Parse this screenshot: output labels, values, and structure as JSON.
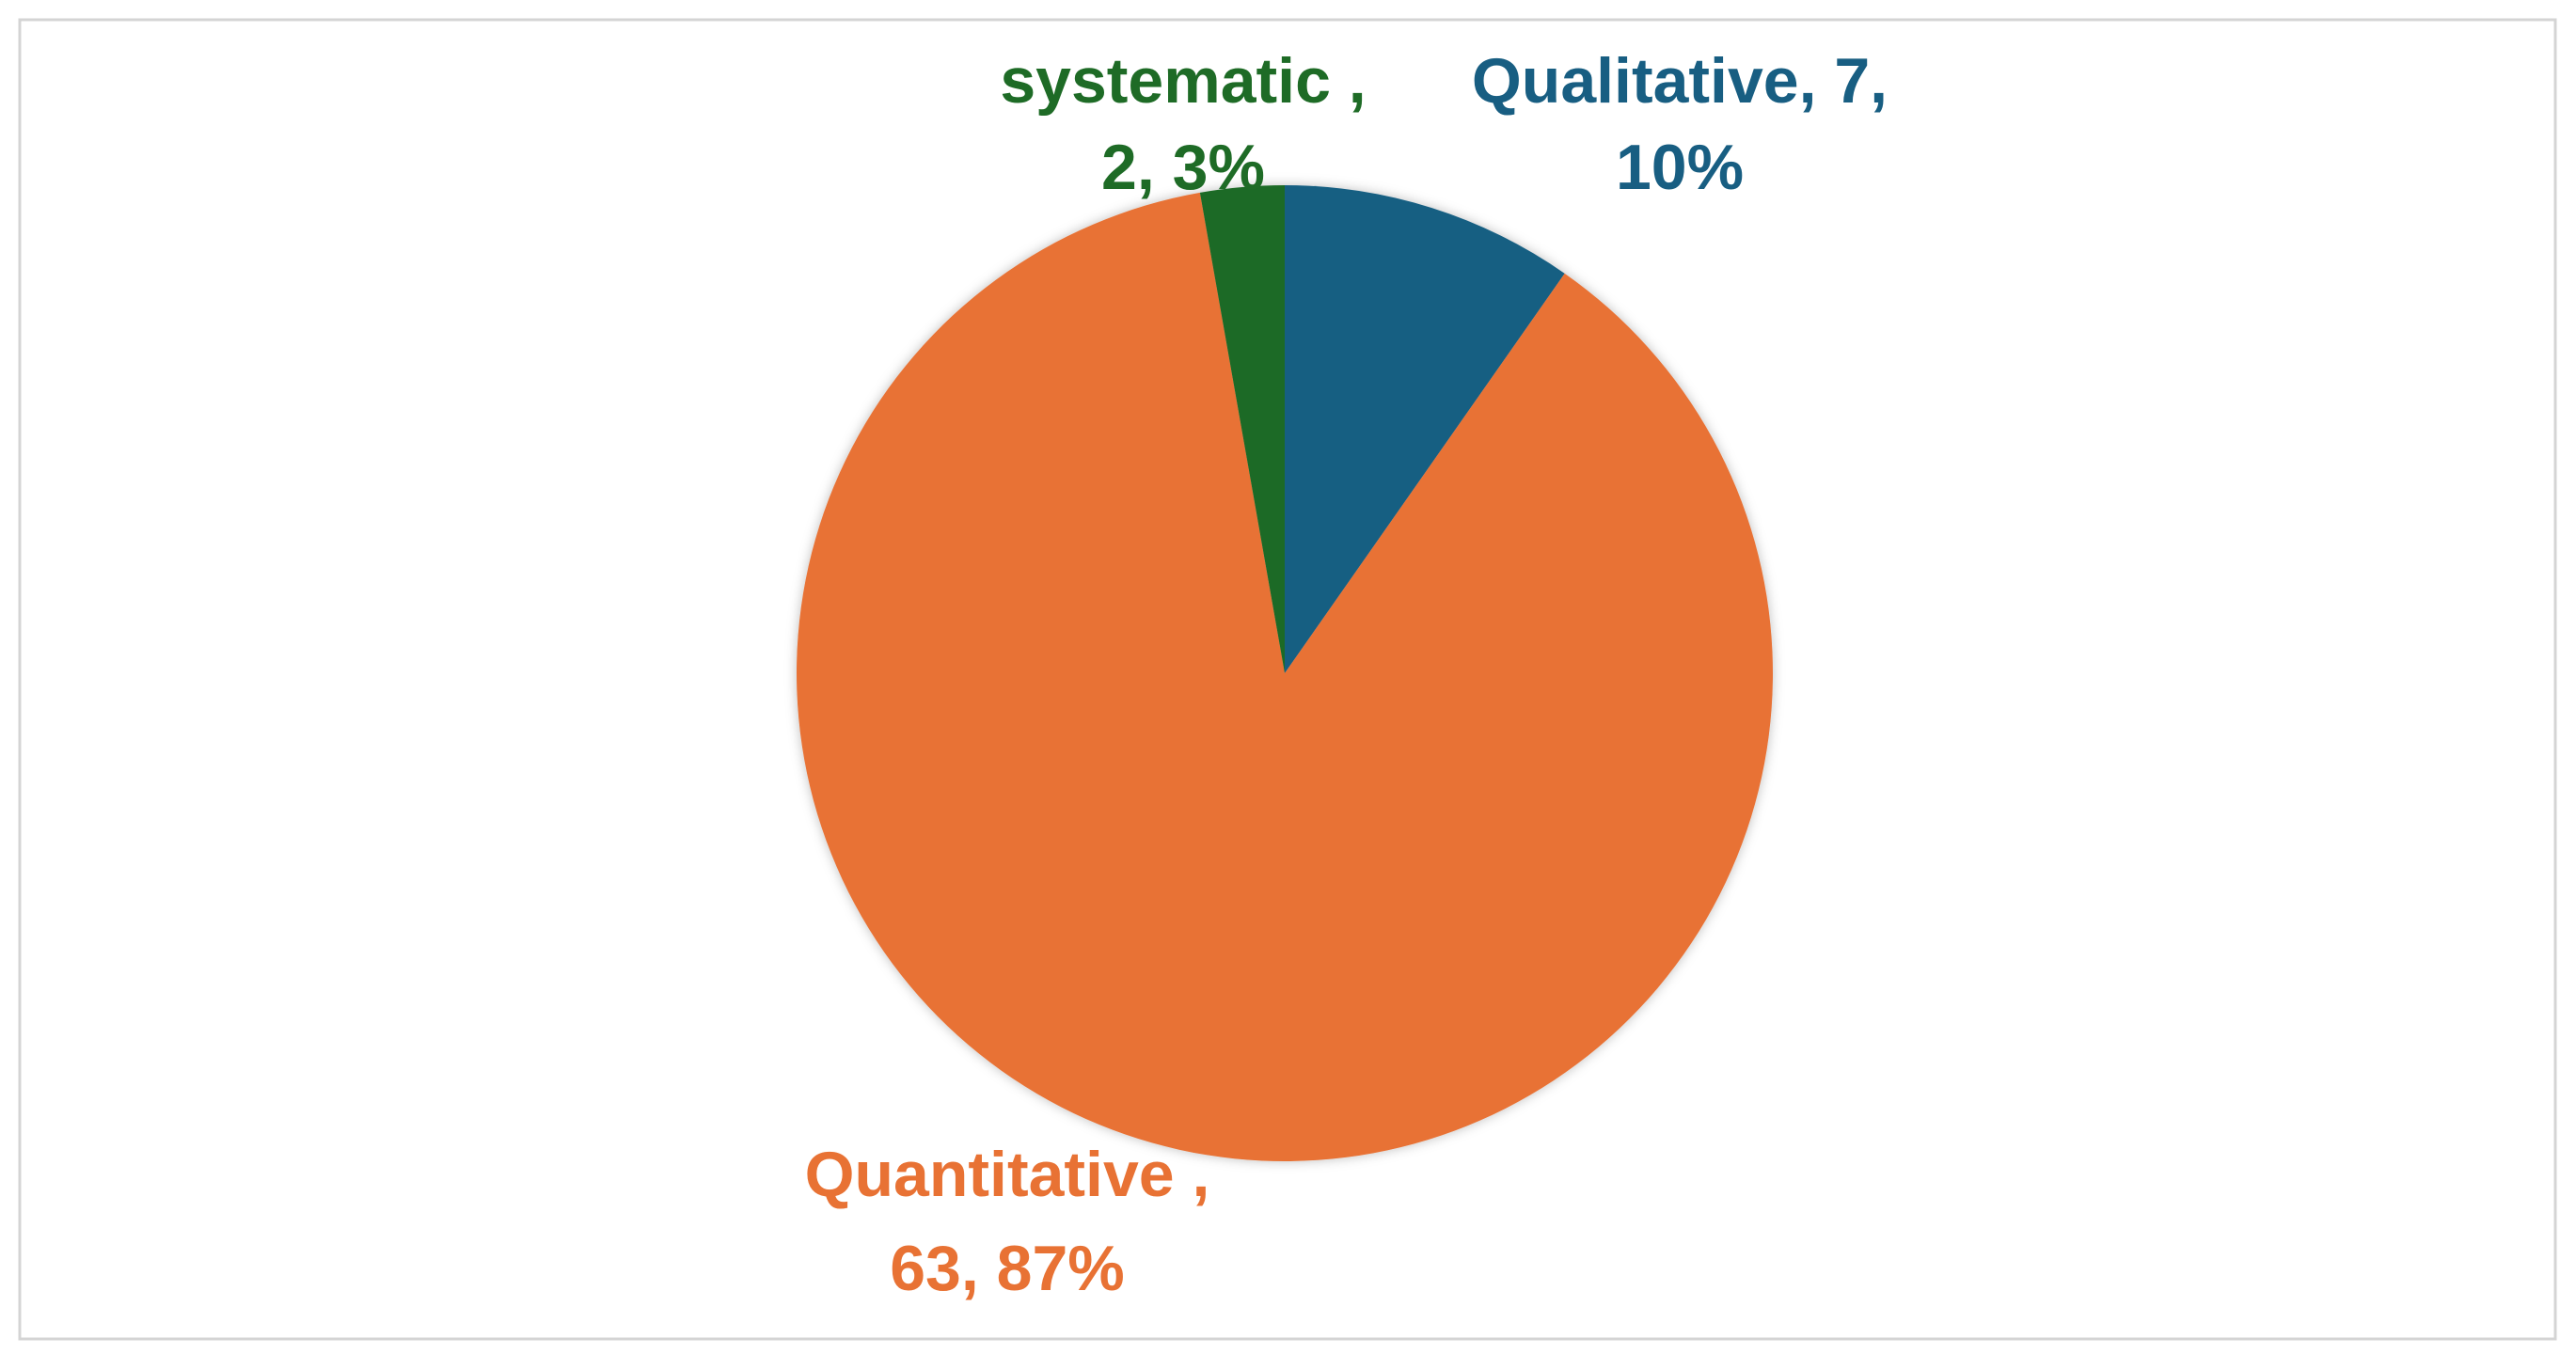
{
  "chart_data": {
    "type": "pie",
    "categories": [
      "Qualitative",
      "Quantitative",
      "systematic"
    ],
    "values": [
      7,
      63,
      2
    ],
    "colors": [
      "#185e82",
      "#e87234",
      "#1e6b26"
    ],
    "value_labels": [
      [
        "Qualitative, 7,",
        "10%"
      ],
      [
        "Quantitative ,",
        "63, 87%"
      ],
      [
        "systematic ,",
        "2, 3%"
      ]
    ]
  }
}
